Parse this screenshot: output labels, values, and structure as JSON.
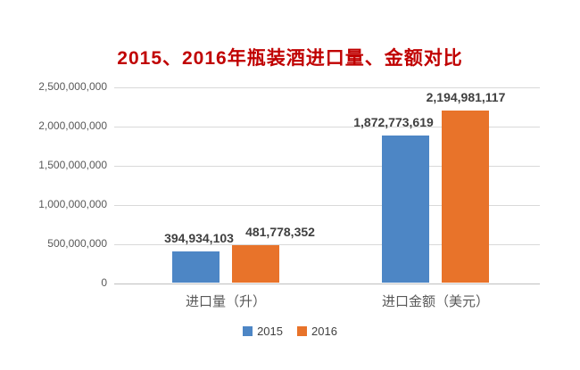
{
  "chart_data": {
    "type": "bar",
    "title": "2015、2016年瓶装酒进口量、金额对比",
    "categories": [
      "进口量（升）",
      "进口金额（美元）"
    ],
    "series": [
      {
        "name": "2015",
        "color": "#4D86C5",
        "values": [
          394934103,
          1872773619
        ],
        "value_labels": [
          "394,934,103",
          "1,872,773,619"
        ]
      },
      {
        "name": "2016",
        "color": "#E8732A",
        "values": [
          481778352,
          2194981117
        ],
        "value_labels": [
          "481,778,352",
          "2,194,981,117"
        ]
      }
    ],
    "ylim": [
      0,
      2500000000
    ],
    "yticks": [
      0,
      500000000,
      1000000000,
      1500000000,
      2000000000,
      2500000000
    ],
    "ytick_labels": [
      "0",
      "500,000,000",
      "1,000,000,000",
      "1,500,000,000",
      "2,000,000,000",
      "2,500,000,000"
    ],
    "grid": true,
    "legend_position": "bottom"
  },
  "colors": {
    "background": "#FFFFFF",
    "title_text": "#C00000",
    "gridline": "#D9D9D9",
    "axis_line": "#BFBFBF",
    "tick_text": "#595959",
    "category_text": "#595959",
    "data_label_text": "#3F3F3F",
    "legend_text": "#404040"
  }
}
